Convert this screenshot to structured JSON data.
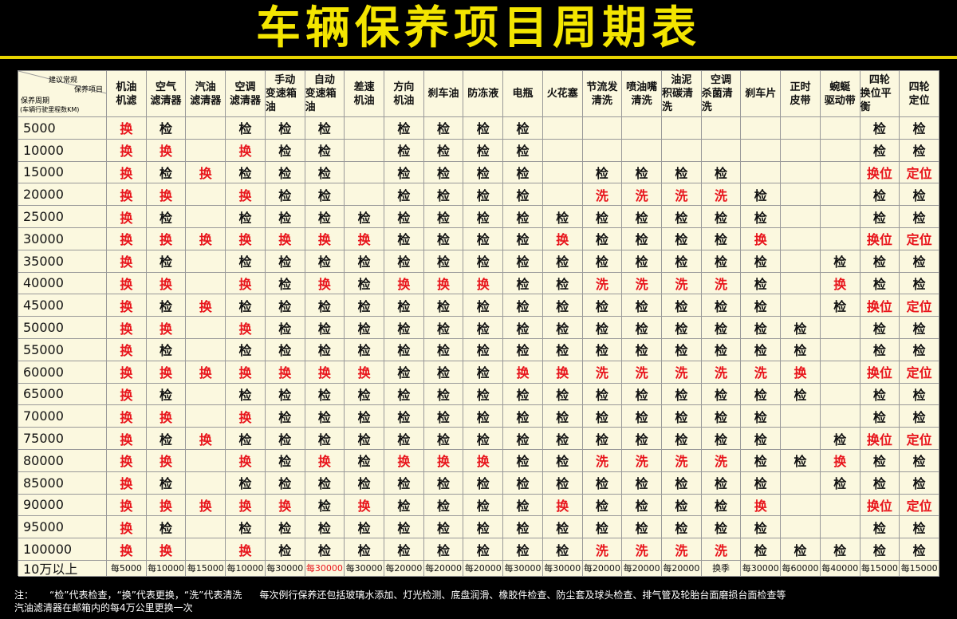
{
  "title": "车辆保养项目周期表",
  "table": {
    "corner": {
      "top": [
        "建议常规",
        "保养项目"
      ],
      "left": [
        "保养周期",
        "(车辆行驶里程数KM)"
      ]
    },
    "columns": [
      [
        "机油",
        "机滤"
      ],
      [
        "空气",
        "滤清器"
      ],
      [
        "汽油",
        "滤清器"
      ],
      [
        "空调",
        "滤清器"
      ],
      [
        "手动",
        "变速箱油"
      ],
      [
        "自动",
        "变速箱油"
      ],
      [
        "差速",
        "机油"
      ],
      [
        "方向",
        "机油"
      ],
      [
        "刹车油"
      ],
      [
        "防冻液"
      ],
      [
        "电瓶"
      ],
      [
        "火花塞"
      ],
      [
        "节流发",
        "清洗"
      ],
      [
        "喷油嘴",
        "清洗"
      ],
      [
        "油泥",
        "积碳清洗"
      ],
      [
        "空调",
        "杀菌清洗"
      ],
      [
        "刹车片"
      ],
      [
        "正时",
        "皮带"
      ],
      [
        "蜿蜒",
        "驱动带"
      ],
      [
        "四轮",
        "换位平衡"
      ],
      [
        "四轮",
        "定位"
      ]
    ],
    "rows": [
      {
        "km": "5000",
        "cells": [
          "换",
          "检",
          null,
          "检",
          "检",
          "检",
          null,
          "检",
          "检",
          "检",
          "检",
          null,
          null,
          null,
          null,
          null,
          null,
          null,
          null,
          "检",
          "检"
        ]
      },
      {
        "km": "10000",
        "cells": [
          "换",
          "换",
          null,
          "换",
          "检",
          "检",
          null,
          "检",
          "检",
          "检",
          "检",
          null,
          null,
          null,
          null,
          null,
          null,
          null,
          null,
          "检",
          "检"
        ]
      },
      {
        "km": "15000",
        "cells": [
          "换",
          "检",
          "换",
          "检",
          "检",
          "检",
          null,
          "检",
          "检",
          "检",
          "检",
          null,
          "检",
          "检",
          "检",
          "检",
          null,
          null,
          null,
          "换位",
          "定位"
        ]
      },
      {
        "km": "20000",
        "cells": [
          "换",
          "换",
          null,
          "换",
          "检",
          "检",
          null,
          "检",
          "检",
          "检",
          "检",
          null,
          "洗",
          "洗",
          "洗",
          "洗",
          "检",
          null,
          null,
          "检",
          "检"
        ]
      },
      {
        "km": "25000",
        "cells": [
          "换",
          "检",
          null,
          "检",
          "检",
          "检",
          "检",
          "检",
          "检",
          "检",
          "检",
          "检",
          "检",
          "检",
          "检",
          "检",
          "检",
          null,
          null,
          "检",
          "检"
        ]
      },
      {
        "km": "30000",
        "cells": [
          "换",
          "换",
          "换",
          "换",
          "换",
          "换",
          "换",
          "检",
          "检",
          "检",
          "检",
          "换",
          "检",
          "检",
          "检",
          "检",
          "换",
          null,
          null,
          "换位",
          "定位"
        ]
      },
      {
        "km": "35000",
        "cells": [
          "换",
          "检",
          null,
          "检",
          "检",
          "检",
          "检",
          "检",
          "检",
          "检",
          "检",
          "检",
          "检",
          "检",
          "检",
          "检",
          "检",
          null,
          "检",
          "检",
          "检"
        ]
      },
      {
        "km": "40000",
        "cells": [
          "换",
          "换",
          null,
          "换",
          "检",
          "换",
          "检",
          "换",
          "换",
          "换",
          "检",
          "检",
          "洗",
          "洗",
          "洗",
          "洗",
          "检",
          null,
          "换",
          "检",
          "检"
        ]
      },
      {
        "km": "45000",
        "cells": [
          "换",
          "检",
          "换",
          "检",
          "检",
          "检",
          "检",
          "检",
          "检",
          "检",
          "检",
          "检",
          "检",
          "检",
          "检",
          "检",
          "检",
          null,
          "检",
          "换位",
          "定位"
        ]
      },
      {
        "km": "50000",
        "cells": [
          "换",
          "换",
          null,
          "换",
          "检",
          "检",
          "检",
          "检",
          "检",
          "检",
          "检",
          "检",
          "检",
          "检",
          "检",
          "检",
          "检",
          "检",
          null,
          "检",
          "检"
        ]
      },
      {
        "km": "55000",
        "cells": [
          "换",
          "检",
          null,
          "检",
          "检",
          "检",
          "检",
          "检",
          "检",
          "检",
          "检",
          "检",
          "检",
          "检",
          "检",
          "检",
          "检",
          "检",
          null,
          "检",
          "检"
        ]
      },
      {
        "km": "60000",
        "cells": [
          "换",
          "换",
          "换",
          "换",
          "换",
          "换",
          "换",
          "检",
          "检",
          "检",
          "换",
          "换",
          "洗",
          "洗",
          "洗",
          "洗",
          "洗",
          "换",
          null,
          "换位",
          "定位"
        ]
      },
      {
        "km": "65000",
        "cells": [
          "换",
          "检",
          null,
          "检",
          "检",
          "检",
          "检",
          "检",
          "检",
          "检",
          "检",
          "检",
          "检",
          "检",
          "检",
          "检",
          "检",
          "检",
          null,
          "检",
          "检"
        ]
      },
      {
        "km": "70000",
        "cells": [
          "换",
          "换",
          null,
          "换",
          "检",
          "检",
          "检",
          "检",
          "检",
          "检",
          "检",
          "检",
          "检",
          "检",
          "检",
          "检",
          "检",
          null,
          null,
          "检",
          "检"
        ]
      },
      {
        "km": "75000",
        "cells": [
          "换",
          "检",
          "换",
          "检",
          "检",
          "检",
          "检",
          "检",
          "检",
          "检",
          "检",
          "检",
          "检",
          "检",
          "检",
          "检",
          "检",
          null,
          "检",
          "换位",
          "定位"
        ]
      },
      {
        "km": "80000",
        "cells": [
          "换",
          "换",
          null,
          "换",
          "检",
          "换",
          "检",
          "换",
          "换",
          "换",
          "检",
          "检",
          "洗",
          "洗",
          "洗",
          "洗",
          "检",
          "检",
          "换",
          "检",
          "检"
        ]
      },
      {
        "km": "85000",
        "cells": [
          "换",
          "检",
          null,
          "检",
          "检",
          "检",
          "检",
          "检",
          "检",
          "检",
          "检",
          "检",
          "检",
          "检",
          "检",
          "检",
          "检",
          null,
          "检",
          "检",
          "检"
        ]
      },
      {
        "km": "90000",
        "cells": [
          "换",
          "换",
          "换",
          "换",
          "换",
          "检",
          "换",
          "检",
          "检",
          "检",
          "检",
          "换",
          "检",
          "检",
          "检",
          "检",
          "换",
          null,
          null,
          "换位",
          "定位"
        ]
      },
      {
        "km": "95000",
        "cells": [
          "换",
          "检",
          null,
          "检",
          "检",
          "检",
          "检",
          "检",
          "检",
          "检",
          "检",
          "检",
          "检",
          "检",
          "检",
          "检",
          "检",
          null,
          null,
          "检",
          "检"
        ]
      },
      {
        "km": "100000",
        "cells": [
          "换",
          "换",
          null,
          "换",
          "检",
          "检",
          "检",
          "检",
          "检",
          "检",
          "检",
          "检",
          "洗",
          "洗",
          "洗",
          "洗",
          "检",
          "检",
          "检",
          "检",
          "检"
        ]
      }
    ],
    "footer_row": {
      "label": "10万以上",
      "cells": [
        "每5000",
        "每10000",
        "每15000",
        "每10000",
        "每30000",
        {
          "text": "每30000",
          "color": "#e8141b"
        },
        "每30000",
        "每20000",
        "每20000",
        "每20000",
        "每30000",
        "每30000",
        "每20000",
        "每20000",
        "每20000",
        "换季",
        "每30000",
        "每60000",
        "每40000",
        "每15000",
        "每15000"
      ]
    }
  },
  "notes": {
    "prefix": "注：",
    "legend": [
      {
        "open": "“",
        "mark": "检",
        "close": "”代表检查，"
      },
      {
        "open": "“",
        "mark": "换",
        "close": "”代表更换，"
      },
      {
        "open": "“",
        "mark": "洗",
        "close": "”代表清洗"
      }
    ],
    "line1": "每次例行保养还包括玻璃水添加、灯光检测、底盘润滑、橡胶件检查、防尘套及球头检查、排气管及轮胎台面磨损台面检查等",
    "line2": "汽油滤清器在邮箱内的每4万公里更换一次"
  },
  "colors": {
    "check": "#111111",
    "change": "#e8141b"
  }
}
